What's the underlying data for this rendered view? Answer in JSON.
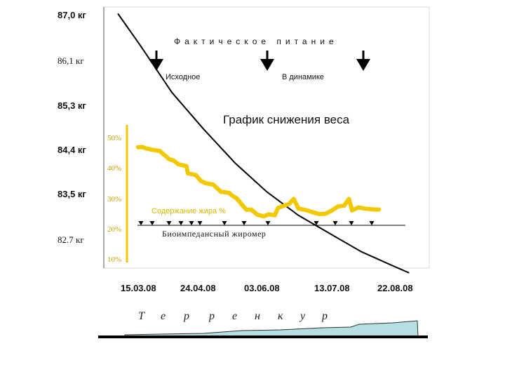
{
  "chart_data": {
    "type": "line",
    "title": "График снижения веса",
    "y_left_ticks": [
      "87,0 кг",
      "86,1 кг",
      "85,3 кг",
      "84,4 кг",
      "83,5 кг",
      "82.7 кг"
    ],
    "y_left_ylim": [
      82.7,
      87.0
    ],
    "y_right_ticks": [
      "50%",
      "40%",
      "30%",
      "20%",
      "10%"
    ],
    "y_right_ylim": [
      10,
      50
    ],
    "x_ticks": [
      "15.03.08",
      "24.04.08",
      "03.06.08",
      "13.07.08",
      "22.08.08"
    ],
    "series": [
      {
        "axis": "weight",
        "color": "#000000",
        "points": [
          [
            -0.35,
            87.0
          ],
          [
            0.0,
            86.4
          ],
          [
            0.5,
            85.5
          ],
          [
            1.0,
            84.8
          ],
          [
            1.5,
            84.15
          ],
          [
            2.0,
            83.6
          ],
          [
            2.5,
            83.15
          ],
          [
            3.0,
            82.8
          ],
          [
            3.5,
            82.45
          ],
          [
            4.0,
            82.18
          ],
          [
            4.25,
            82.05
          ]
        ]
      },
      {
        "name": "Содержание жира %",
        "axis": "fat",
        "color": "#f2c800",
        "points": [
          [
            0.02,
            46.8
          ],
          [
            0.15,
            46.9
          ],
          [
            0.28,
            46.4
          ],
          [
            0.5,
            45.9
          ],
          [
            0.7,
            45.6
          ],
          [
            0.85,
            44.3
          ],
          [
            1.0,
            42.9
          ],
          [
            1.15,
            42.4
          ],
          [
            1.3,
            41.2
          ],
          [
            1.55,
            40.6
          ],
          [
            1.6,
            38.2
          ],
          [
            1.85,
            37.6
          ],
          [
            2.0,
            35.8
          ],
          [
            2.15,
            35.0
          ],
          [
            2.4,
            34.5
          ],
          [
            2.55,
            33.0
          ],
          [
            2.65,
            32.1
          ],
          [
            2.9,
            31.8
          ],
          [
            3.0,
            30.9
          ],
          [
            3.15,
            29.9
          ],
          [
            3.25,
            28.6
          ],
          [
            3.45,
            26.2
          ],
          [
            3.6,
            26.3
          ],
          [
            3.8,
            24.6
          ],
          [
            4.0,
            24.0
          ],
          [
            4.15,
            24.7
          ],
          [
            4.35,
            24.4
          ],
          [
            4.45,
            26.8
          ],
          [
            4.6,
            27.4
          ],
          [
            4.8,
            28.1
          ],
          [
            4.95,
            29.8
          ],
          [
            5.1,
            26.6
          ],
          [
            5.3,
            26.2
          ],
          [
            5.55,
            25.4
          ],
          [
            5.75,
            24.8
          ],
          [
            5.95,
            24.9
          ],
          [
            6.15,
            25.9
          ],
          [
            6.35,
            27.3
          ],
          [
            6.55,
            27.6
          ],
          [
            6.7,
            29.8
          ],
          [
            6.8,
            26.0
          ],
          [
            7.0,
            27.0
          ],
          [
            7.2,
            26.6
          ],
          [
            7.5,
            26.3
          ],
          [
            7.65,
            26.3
          ]
        ]
      }
    ],
    "grid": false
  },
  "annotations": {
    "banner": "Фактическое питание",
    "arrow_labels": [
      "Исходное",
      "В динамике"
    ],
    "fat_label": "Содержание жира %",
    "meter_label": "Биоимпедансный жиромер",
    "terrain_label": [
      "Т",
      "е",
      "р",
      "р",
      "е",
      "н",
      "к",
      "у",
      "р"
    ]
  }
}
